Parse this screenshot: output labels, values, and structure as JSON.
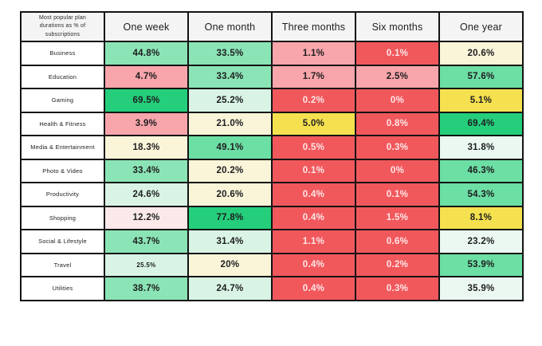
{
  "table": {
    "corner_label": "Most popular plan durations as % of subscriptions",
    "columns": [
      "One week",
      "One month",
      "Three months",
      "Six months",
      "One year"
    ]
  },
  "palette": {
    "red": "#F1585C",
    "pink": "#F8A6AB",
    "pale_pink": "#FBE9E9",
    "yellow": "#F5E14F",
    "cream": "#FAF5D9",
    "pale_mint": "#D9F4E5",
    "mint_white": "#EAF8F1",
    "med_green": "#8BE4B5",
    "green": "#6CDFA4",
    "bright_green": "#24CE7B",
    "dark_text": "#1D1D1F",
    "light_text": "#FFE6E7",
    "header_bg": "#F4F4F4",
    "border": "#131313"
  },
  "rows": [
    {
      "label": "Business",
      "cells": [
        {
          "value": "44.8%",
          "color": "med_green"
        },
        {
          "value": "33.5%",
          "color": "med_green"
        },
        {
          "value": "1.1%",
          "color": "pink"
        },
        {
          "value": "0.1%",
          "color": "red"
        },
        {
          "value": "20.6%",
          "color": "cream"
        }
      ]
    },
    {
      "label": "Education",
      "cells": [
        {
          "value": "4.7%",
          "color": "pink"
        },
        {
          "value": "33.4%",
          "color": "med_green"
        },
        {
          "value": "1.7%",
          "color": "pink"
        },
        {
          "value": "2.5%",
          "color": "pink"
        },
        {
          "value": "57.6%",
          "color": "green"
        }
      ]
    },
    {
      "label": "Gaming",
      "cells": [
        {
          "value": "69.5%",
          "color": "bright_green"
        },
        {
          "value": "25.2%",
          "color": "pale_mint"
        },
        {
          "value": "0.2%",
          "color": "red"
        },
        {
          "value": "0%",
          "color": "red"
        },
        {
          "value": "5.1%",
          "color": "yellow"
        }
      ]
    },
    {
      "label": "Health & Fitness",
      "cells": [
        {
          "value": "3.9%",
          "color": "pink"
        },
        {
          "value": "21.0%",
          "color": "cream"
        },
        {
          "value": "5.0%",
          "color": "yellow"
        },
        {
          "value": "0.8%",
          "color": "red"
        },
        {
          "value": "69.4%",
          "color": "bright_green"
        }
      ]
    },
    {
      "label": "Media & Entertainment",
      "cells": [
        {
          "value": "18.3%",
          "color": "cream"
        },
        {
          "value": "49.1%",
          "color": "green"
        },
        {
          "value": "0.5%",
          "color": "red"
        },
        {
          "value": "0.3%",
          "color": "red"
        },
        {
          "value": "31.8%",
          "color": "mint_white"
        }
      ]
    },
    {
      "label": "Photo & Video",
      "cells": [
        {
          "value": "33.4%",
          "color": "med_green"
        },
        {
          "value": "20.2%",
          "color": "cream"
        },
        {
          "value": "0.1%",
          "color": "red"
        },
        {
          "value": "0%",
          "color": "red"
        },
        {
          "value": "46.3%",
          "color": "green"
        }
      ]
    },
    {
      "label": "Productivity",
      "cells": [
        {
          "value": "24.6%",
          "color": "pale_mint"
        },
        {
          "value": "20.6%",
          "color": "cream"
        },
        {
          "value": "0.4%",
          "color": "red"
        },
        {
          "value": "0.1%",
          "color": "red"
        },
        {
          "value": "54.3%",
          "color": "green"
        }
      ]
    },
    {
      "label": "Shopping",
      "cells": [
        {
          "value": "12.2%",
          "color": "pale_pink"
        },
        {
          "value": "77.8%",
          "color": "bright_green"
        },
        {
          "value": "0.4%",
          "color": "red"
        },
        {
          "value": "1.5%",
          "color": "red"
        },
        {
          "value": "8.1%",
          "color": "yellow"
        }
      ]
    },
    {
      "label": "Social & Lifestyle",
      "cells": [
        {
          "value": "43.7%",
          "color": "med_green"
        },
        {
          "value": "31.4%",
          "color": "pale_mint"
        },
        {
          "value": "1.1%",
          "color": "red"
        },
        {
          "value": "0.6%",
          "color": "red"
        },
        {
          "value": "23.2%",
          "color": "mint_white"
        }
      ]
    },
    {
      "label": "Travel",
      "cells": [
        {
          "value": "25.5%",
          "color": "pale_mint",
          "small": true
        },
        {
          "value": "20%",
          "color": "cream"
        },
        {
          "value": "0.4%",
          "color": "red"
        },
        {
          "value": "0.2%",
          "color": "red"
        },
        {
          "value": "53.9%",
          "color": "green"
        }
      ]
    },
    {
      "label": "Utilities",
      "cells": [
        {
          "value": "38.7%",
          "color": "med_green"
        },
        {
          "value": "24.7%",
          "color": "pale_mint"
        },
        {
          "value": "0.4%",
          "color": "red"
        },
        {
          "value": "0.3%",
          "color": "red"
        },
        {
          "value": "35.9%",
          "color": "mint_white"
        }
      ]
    }
  ],
  "chart_data": {
    "type": "heatmap",
    "title": "Most popular plan durations as % of subscriptions",
    "columns": [
      "One week",
      "One month",
      "Three months",
      "Six months",
      "One year"
    ],
    "rows": [
      "Business",
      "Education",
      "Gaming",
      "Health & Fitness",
      "Media & Entertainment",
      "Photo & Video",
      "Productivity",
      "Shopping",
      "Social & Lifestyle",
      "Travel",
      "Utilities"
    ],
    "values_percent": [
      [
        44.8,
        33.5,
        1.1,
        0.1,
        20.6
      ],
      [
        4.7,
        33.4,
        1.7,
        2.5,
        57.6
      ],
      [
        69.5,
        25.2,
        0.2,
        0,
        5.1
      ],
      [
        3.9,
        21.0,
        5.0,
        0.8,
        69.4
      ],
      [
        18.3,
        49.1,
        0.5,
        0.3,
        31.8
      ],
      [
        33.4,
        20.2,
        0.1,
        0,
        46.3
      ],
      [
        24.6,
        20.6,
        0.4,
        0.1,
        54.3
      ],
      [
        12.2,
        77.8,
        0.4,
        1.5,
        8.1
      ],
      [
        43.7,
        31.4,
        1.1,
        0.6,
        23.2
      ],
      [
        25.5,
        20,
        0.4,
        0.2,
        53.9
      ],
      [
        38.7,
        24.7,
        0.4,
        0.3,
        35.9
      ]
    ],
    "color_scale": "red (low) through yellow (mid) to green (high), shaded per row",
    "legend": "none",
    "grid": "black 2px cell borders"
  }
}
